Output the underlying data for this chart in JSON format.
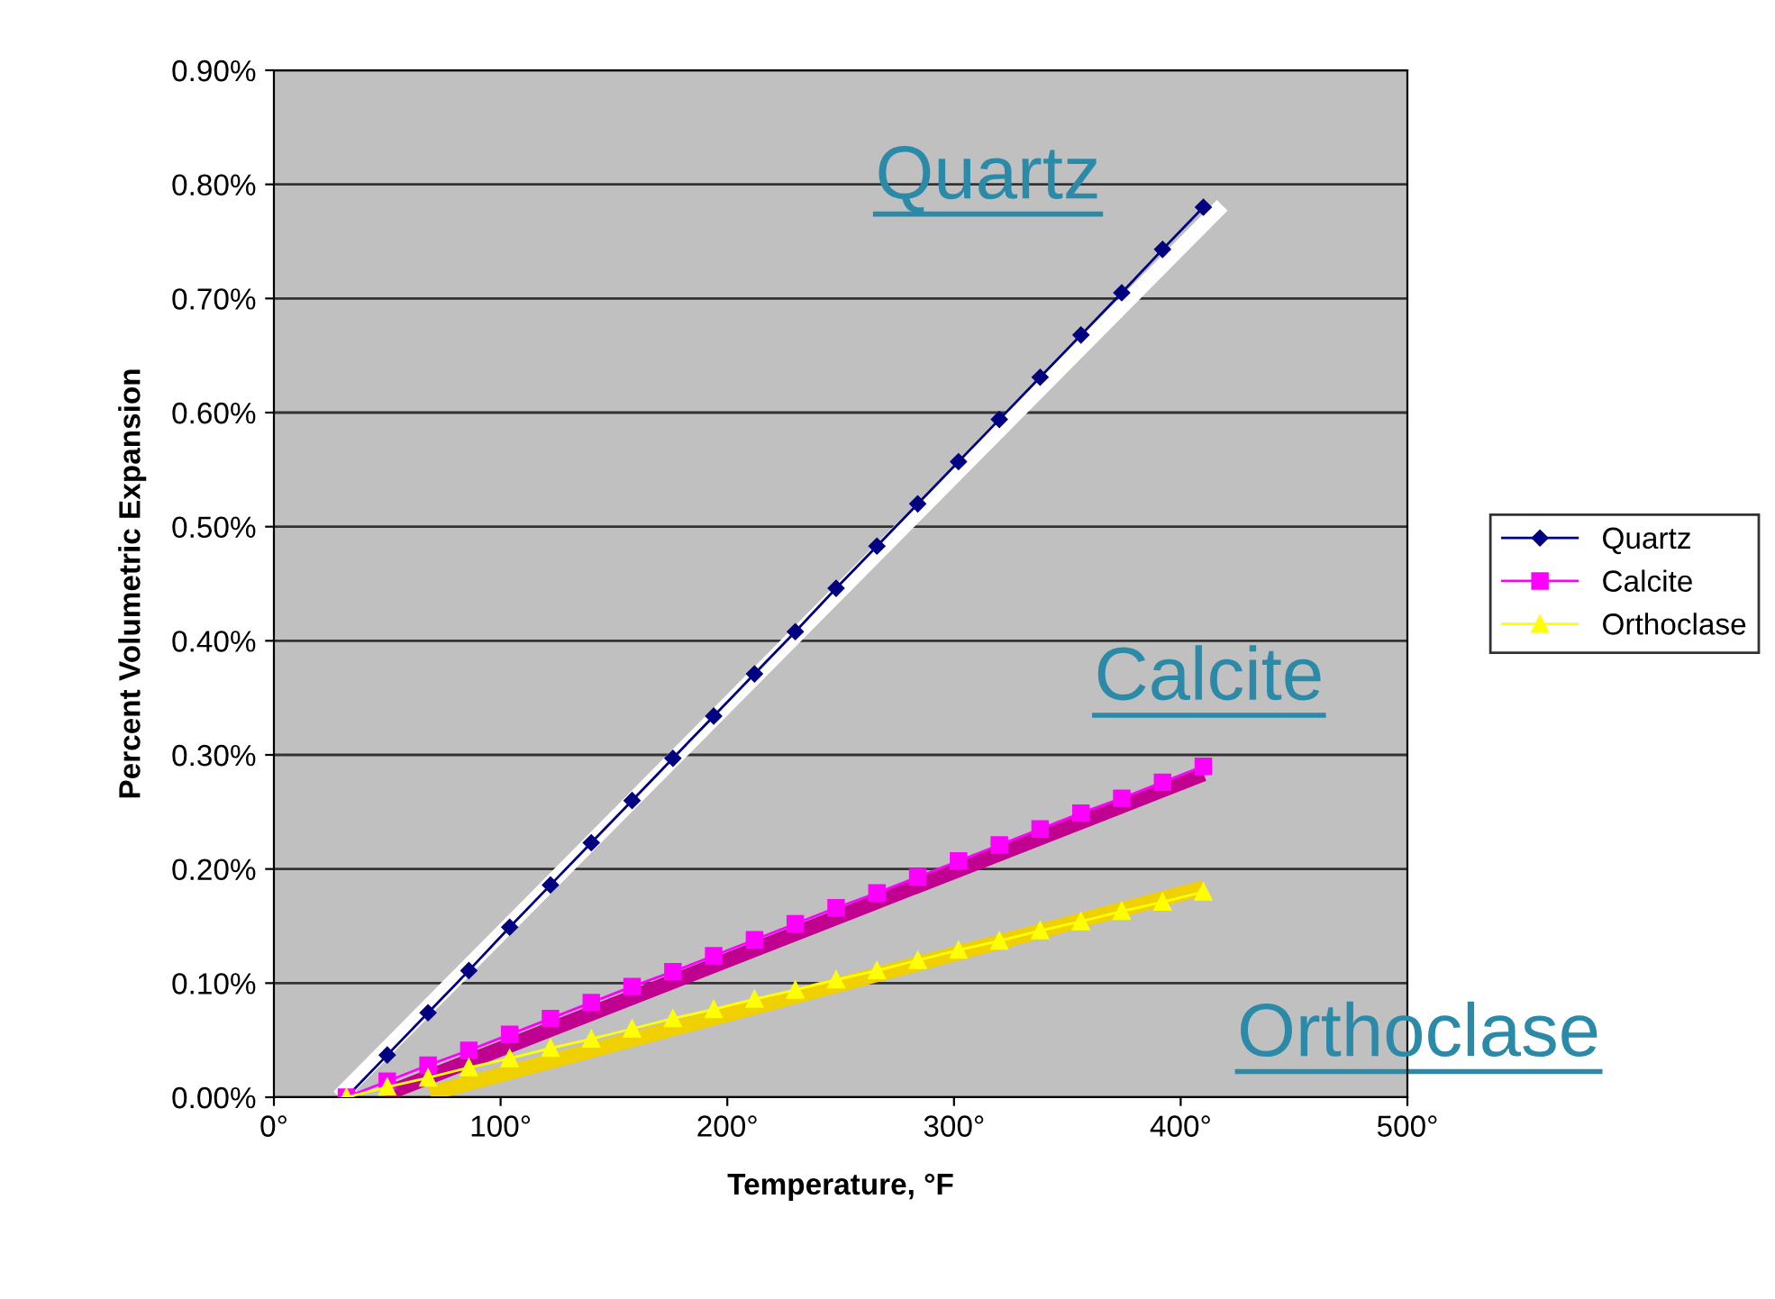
{
  "chart_data": {
    "type": "line",
    "xlabel": "Temperature, °F",
    "ylabel": "Percent Volumetric Expansion",
    "xlim": [
      0,
      500
    ],
    "ylim": [
      0,
      0.9
    ],
    "xticks": [
      {
        "value": 0,
        "label": "0°"
      },
      {
        "value": 100,
        "label": "100°"
      },
      {
        "value": 200,
        "label": "200°"
      },
      {
        "value": 300,
        "label": "300°"
      },
      {
        "value": 400,
        "label": "400°"
      },
      {
        "value": 500,
        "label": "500°"
      }
    ],
    "yticks": [
      {
        "value": 0,
        "label": "0.00%"
      },
      {
        "value": 0.1,
        "label": "0.10%"
      },
      {
        "value": 0.2,
        "label": "0.20%"
      },
      {
        "value": 0.3,
        "label": "0.30%"
      },
      {
        "value": 0.4,
        "label": "0.40%"
      },
      {
        "value": 0.5,
        "label": "0.50%"
      },
      {
        "value": 0.6,
        "label": "0.60%"
      },
      {
        "value": 0.7,
        "label": "0.70%"
      },
      {
        "value": 0.8,
        "label": "0.80%"
      },
      {
        "value": 0.9,
        "label": "0.90%"
      }
    ],
    "grid": "y",
    "legend": "right",
    "x": [
      32,
      50,
      68,
      86,
      104,
      122,
      140,
      158,
      176,
      194,
      212,
      230,
      248,
      266,
      284,
      302,
      320,
      338,
      356,
      374,
      392,
      410
    ],
    "series": [
      {
        "name": "Quartz",
        "color": "#000080",
        "marker": "diamond",
        "values": [
          0,
          0.037,
          0.074,
          0.111,
          0.149,
          0.186,
          0.223,
          0.26,
          0.297,
          0.334,
          0.371,
          0.408,
          0.446,
          0.483,
          0.52,
          0.557,
          0.594,
          0.631,
          0.668,
          0.705,
          0.743,
          0.78
        ]
      },
      {
        "name": "Calcite",
        "color": "#ff00ff",
        "marker": "square",
        "values": [
          0,
          0.014,
          0.028,
          0.041,
          0.055,
          0.069,
          0.083,
          0.097,
          0.11,
          0.124,
          0.138,
          0.152,
          0.166,
          0.179,
          0.193,
          0.207,
          0.221,
          0.235,
          0.249,
          0.262,
          0.276,
          0.29
        ]
      },
      {
        "name": "Orthoclase",
        "color": "#ffff00",
        "marker": "triangle",
        "values": [
          0,
          0.009,
          0.017,
          0.026,
          0.034,
          0.043,
          0.051,
          0.06,
          0.069,
          0.077,
          0.086,
          0.094,
          0.103,
          0.111,
          0.12,
          0.129,
          0.137,
          0.146,
          0.154,
          0.163,
          0.171,
          0.18
        ]
      },
      {
        "type": "line",
        "color": "#ffffff",
        "marker": "none",
        "x": [
          31,
          416
        ],
        "values": [
          0.005,
          0.777
        ]
      },
      {
        "type": "line",
        "color": "#c0008f",
        "marker": "none",
        "x": [
          52,
          407
        ],
        "values": [
          0.005,
          0.281
        ]
      },
      {
        "type": "line",
        "color": "#f0d000",
        "marker": "none",
        "x": [
          72,
          407
        ],
        "values": [
          0.005,
          0.182
        ]
      }
    ],
    "annotations": [
      "Quartz",
      "Calcite",
      "Orthoclase"
    ]
  }
}
